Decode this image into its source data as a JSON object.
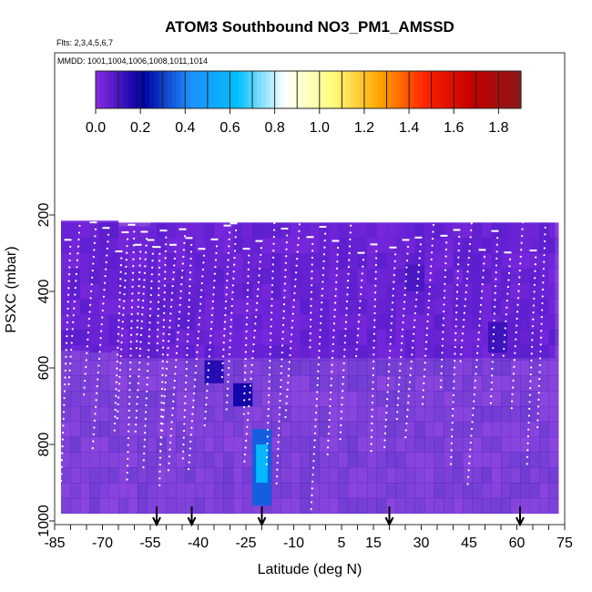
{
  "chart_data": {
    "type": "heatmap",
    "title": "ATOM3 Southbound NO3_PM1_AMSSD",
    "flights_label": "Flts: 2,3,4,5,6,7",
    "dates_label": "MMDD: 1001,1004,1006,1008,1011,1014",
    "xlabel": "Latitude (deg N)",
    "ylabel": "PSXC (mbar)",
    "x_ticks": [
      "-85",
      "-70",
      "-55",
      "-40",
      "-25",
      "-10",
      "5",
      "15",
      "30",
      "45",
      "60",
      "75"
    ],
    "y_ticks": [
      "200",
      "400",
      "600",
      "800",
      "1000"
    ],
    "xlim": [
      -85,
      75
    ],
    "ylim": [
      1000,
      0
    ],
    "colorbar": {
      "ticks": [
        "0.0",
        "0.2",
        "0.4",
        "0.6",
        "0.8",
        "1.0",
        "1.2",
        "1.4",
        "1.6",
        "1.8"
      ],
      "range": [
        0.0,
        1.9
      ],
      "colors": [
        "#8a2be2",
        "#0000a0",
        "#1e90ff",
        "#00bfff",
        "#ffffff",
        "#ffff80",
        "#ffa500",
        "#ff2000",
        "#c00000",
        "#8b1a1a"
      ]
    },
    "background_value": 0.05,
    "background_color": "#7b2ee6",
    "enhancements": [
      {
        "lat": -35,
        "p_top": 580,
        "p_bottom": 640,
        "value": 0.15
      },
      {
        "lat": -26,
        "p_top": 640,
        "p_bottom": 700,
        "value": 0.18
      },
      {
        "lat": -20,
        "p_top": 760,
        "p_bottom": 960,
        "value": 0.35
      },
      {
        "lat": 28,
        "p_top": 330,
        "p_bottom": 400,
        "value": 0.1
      },
      {
        "lat": 54,
        "p_top": 480,
        "p_bottom": 560,
        "value": 0.12
      }
    ],
    "arrows_lat": [
      -53,
      -42,
      -20,
      20,
      61
    ]
  }
}
